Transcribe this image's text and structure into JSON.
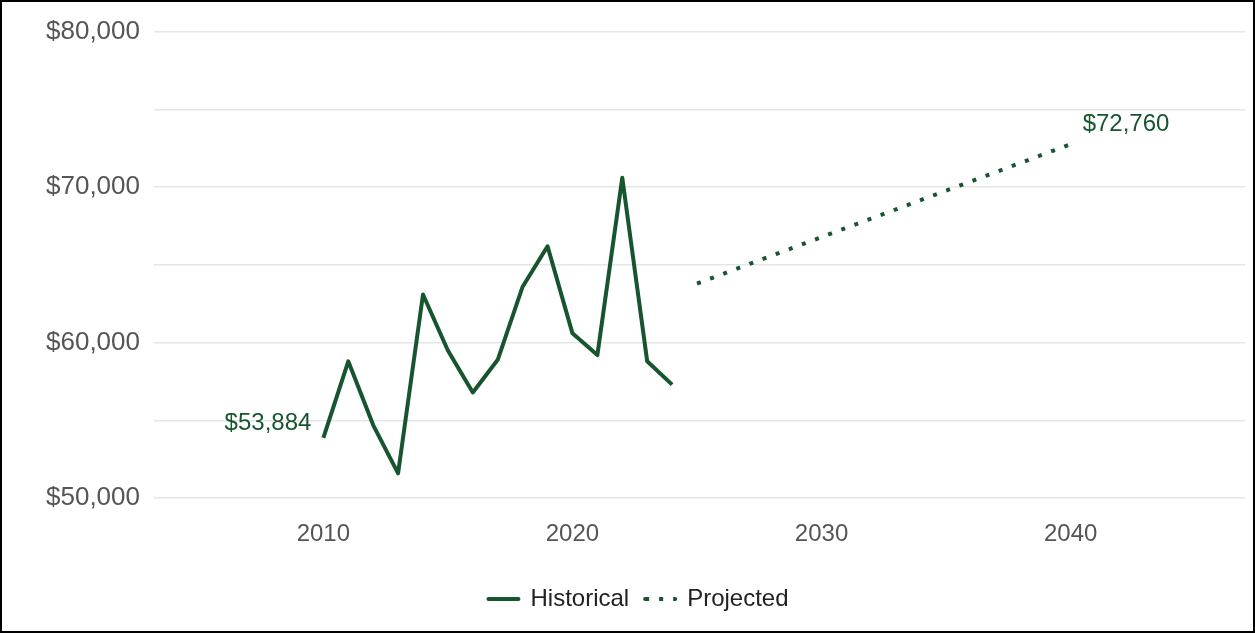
{
  "chart_data": {
    "type": "line",
    "xlim": [
      2003.2,
      2047
    ],
    "xticks": [
      2010,
      2020,
      2030,
      2040
    ],
    "ylim": [
      50000,
      80000
    ],
    "yticks": [
      {
        "value": 50000,
        "label": "$50,000"
      },
      {
        "value": 55000,
        "label": null
      },
      {
        "value": 60000,
        "label": "$60,000"
      },
      {
        "value": 65000,
        "label": null
      },
      {
        "value": 70000,
        "label": "$70,000"
      },
      {
        "value": 75000,
        "label": null
      },
      {
        "value": 80000,
        "label": "$80,000"
      }
    ],
    "grid": "y",
    "legend": "bottom",
    "marker": "none",
    "series": [
      {
        "name": "Historical",
        "color": "#17552f",
        "line_style": "solid",
        "x": [
          2010,
          2011,
          2012,
          2013,
          2014,
          2015,
          2016,
          2017,
          2018,
          2019,
          2020,
          2021,
          2022,
          2023,
          2024
        ],
        "values": [
          53884,
          58800,
          54700,
          51600,
          63100,
          59500,
          56800,
          58900,
          63600,
          66200,
          60600,
          59200,
          70600,
          58800,
          57300
        ]
      },
      {
        "name": "Projected",
        "color": "#17552f",
        "line_style": "dotted",
        "x": [
          2025,
          2040
        ],
        "values": [
          63800,
          72760
        ]
      }
    ],
    "annotations": [
      {
        "text": "$53,884",
        "x": 2010,
        "y": 53884
      },
      {
        "text": "$72,760",
        "x": 2040,
        "y": 72760
      }
    ]
  }
}
